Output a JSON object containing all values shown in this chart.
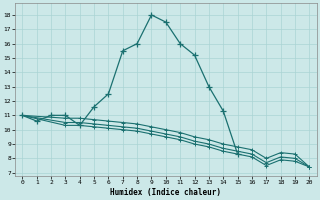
{
  "xlabel": "Humidex (Indice chaleur)",
  "xlim": [
    -0.5,
    20.5
  ],
  "ylim": [
    6.8,
    18.8
  ],
  "xticks": [
    0,
    1,
    2,
    3,
    4,
    5,
    6,
    7,
    8,
    9,
    10,
    11,
    12,
    13,
    14,
    15,
    16,
    17,
    18,
    19,
    20
  ],
  "yticks": [
    7,
    8,
    9,
    10,
    11,
    12,
    13,
    14,
    15,
    16,
    17,
    18
  ],
  "line_color": "#1a7070",
  "bg_color": "#cce8e8",
  "grid_color": "#aad4d4",
  "peaked_line": {
    "x": [
      0,
      1,
      2,
      3,
      4,
      5,
      6,
      7,
      8,
      9,
      10,
      11,
      12,
      13,
      14,
      15
    ],
    "y": [
      11,
      10.6,
      11,
      11,
      10.3,
      11.6,
      12.5,
      15.5,
      16.0,
      18.0,
      17.5,
      16.0,
      15.2,
      13.0,
      11.3,
      8.3
    ]
  },
  "flat_lines": [
    {
      "x": [
        0,
        3,
        4,
        5,
        6,
        7,
        8,
        9,
        10,
        11,
        12,
        13,
        14,
        15,
        16,
        17,
        18,
        19,
        20
      ],
      "y": [
        11,
        10.3,
        10.3,
        10.2,
        10.1,
        10.0,
        9.9,
        9.7,
        9.5,
        9.3,
        9.0,
        8.8,
        8.5,
        8.3,
        8.1,
        7.5,
        7.9,
        7.8,
        7.4
      ]
    },
    {
      "x": [
        0,
        3,
        4,
        5,
        6,
        7,
        8,
        9,
        10,
        11,
        12,
        13,
        14,
        15,
        16,
        17,
        18,
        19,
        20
      ],
      "y": [
        11,
        10.5,
        10.5,
        10.4,
        10.3,
        10.2,
        10.1,
        9.9,
        9.7,
        9.5,
        9.2,
        9.0,
        8.7,
        8.5,
        8.3,
        7.7,
        8.1,
        8.0,
        7.4
      ]
    },
    {
      "x": [
        0,
        3,
        4,
        5,
        6,
        7,
        8,
        9,
        10,
        11,
        12,
        13,
        14,
        15,
        16,
        17,
        18,
        19,
        20
      ],
      "y": [
        11,
        10.8,
        10.8,
        10.7,
        10.6,
        10.5,
        10.4,
        10.2,
        10.0,
        9.8,
        9.5,
        9.3,
        9.0,
        8.8,
        8.6,
        8.0,
        8.4,
        8.3,
        7.4
      ]
    }
  ]
}
